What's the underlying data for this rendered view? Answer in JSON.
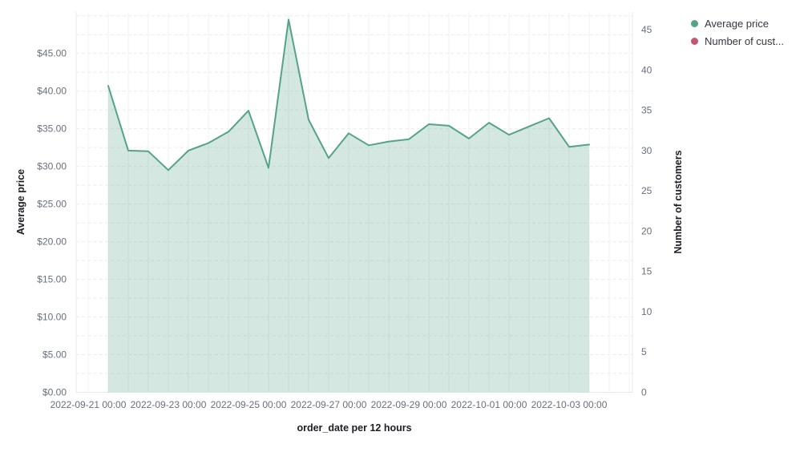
{
  "chart_data": {
    "type": "area",
    "title": "",
    "xlabel": "order_date per 12 hours",
    "ylabel_left": "Average price",
    "ylabel_right": "Number of customers",
    "x": [
      "2022-09-21 12:00",
      "2022-09-22 00:00",
      "2022-09-22 12:00",
      "2022-09-23 00:00",
      "2022-09-23 12:00",
      "2022-09-24 00:00",
      "2022-09-24 12:00",
      "2022-09-25 00:00",
      "2022-09-25 12:00",
      "2022-09-26 00:00",
      "2022-09-26 12:00",
      "2022-09-27 00:00",
      "2022-09-27 12:00",
      "2022-09-28 00:00",
      "2022-09-28 12:00",
      "2022-09-29 00:00",
      "2022-09-29 12:00",
      "2022-09-30 00:00",
      "2022-09-30 12:00",
      "2022-10-01 00:00",
      "2022-10-01 12:00",
      "2022-10-02 00:00",
      "2022-10-02 12:00",
      "2022-10-03 00:00",
      "2022-10-03 12:00"
    ],
    "series": [
      {
        "name": "Average price",
        "axis": "left",
        "color": "#54a389",
        "values": [
          40.7,
          32.1,
          32.0,
          29.5,
          32.1,
          33.1,
          34.6,
          37.4,
          29.8,
          49.5,
          36.2,
          31.1,
          34.4,
          32.8,
          33.3,
          33.6,
          35.6,
          35.4,
          33.7,
          35.8,
          34.2,
          35.3,
          36.4,
          32.6,
          32.9
        ]
      },
      {
        "name": "Number of customers",
        "axis": "right",
        "color": "#c35672",
        "values": []
      }
    ],
    "x_tick_labels": [
      "2022-09-21 00:00",
      "2022-09-23 00:00",
      "2022-09-25 00:00",
      "2022-09-27 00:00",
      "2022-09-29 00:00",
      "2022-10-01 00:00",
      "2022-10-03 00:00"
    ],
    "left_ticks": [
      "$0.00",
      "$5.00",
      "$10.00",
      "$15.00",
      "$20.00",
      "$25.00",
      "$30.00",
      "$35.00",
      "$40.00",
      "$45.00"
    ],
    "right_ticks": [
      "0",
      "5",
      "10",
      "15",
      "20",
      "25",
      "30",
      "35",
      "40",
      "45"
    ],
    "ylim_left": [
      0,
      50.5
    ],
    "ylim_right": [
      0,
      47.2
    ],
    "grid": true,
    "legend_position": "top-right"
  },
  "legend": {
    "items": [
      {
        "label": "Average price",
        "color": "#54a389"
      },
      {
        "label": "Number of cust...",
        "color": "#c35672"
      }
    ]
  },
  "colors": {
    "series_green": "#54a389",
    "series_pink": "#c35672",
    "area_fill": "rgba(84,163,137,0.25)",
    "tick_text": "#696f7d",
    "title_text": "#1c1e24",
    "grid_vertical": "#edf0f4",
    "grid_dashed": "#e7ebf1",
    "axis_border": "#e4e8ee"
  }
}
